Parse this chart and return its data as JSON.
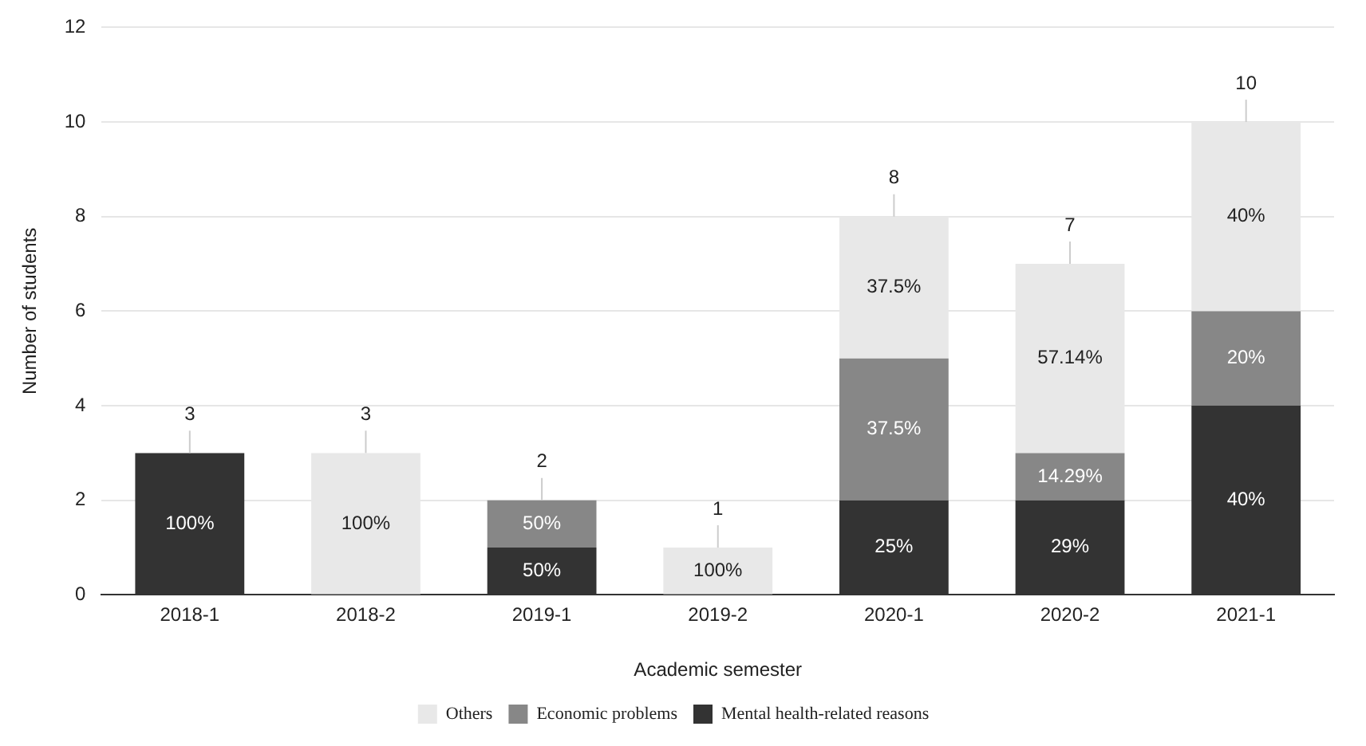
{
  "chart_data": {
    "type": "bar",
    "stacked": true,
    "xlabel": "Academic semester",
    "ylabel": "Number of students",
    "categories": [
      "2018-1",
      "2018-2",
      "2019-1",
      "2019-2",
      "2020-1",
      "2020-2",
      "2021-1"
    ],
    "series": [
      {
        "name": "Mental health-related reasons",
        "color": "#333333",
        "values": [
          3,
          null,
          1,
          null,
          2,
          2,
          4
        ]
      },
      {
        "name": "Economic problems",
        "color": "#878787",
        "values": [
          null,
          null,
          1,
          null,
          3,
          1,
          2
        ]
      },
      {
        "name": "Others",
        "color": "#e8e8e8",
        "values": [
          null,
          3,
          null,
          1,
          3,
          4,
          4
        ]
      }
    ],
    "annotations": [
      "100%",
      "100%",
      "50%",
      "50%",
      "100%",
      "25%",
      "37.5%",
      "37.5%",
      "29%",
      "14.29%",
      "57.14%",
      "40%",
      "20%",
      "40%"
    ],
    "totals": [
      "3",
      "3",
      "2",
      "1",
      "8",
      "7",
      "10"
    ],
    "ylim": [
      0,
      12
    ],
    "yticks": [
      0,
      2,
      4,
      6,
      8,
      10,
      12
    ],
    "grid": "y",
    "legend": "bottom"
  }
}
